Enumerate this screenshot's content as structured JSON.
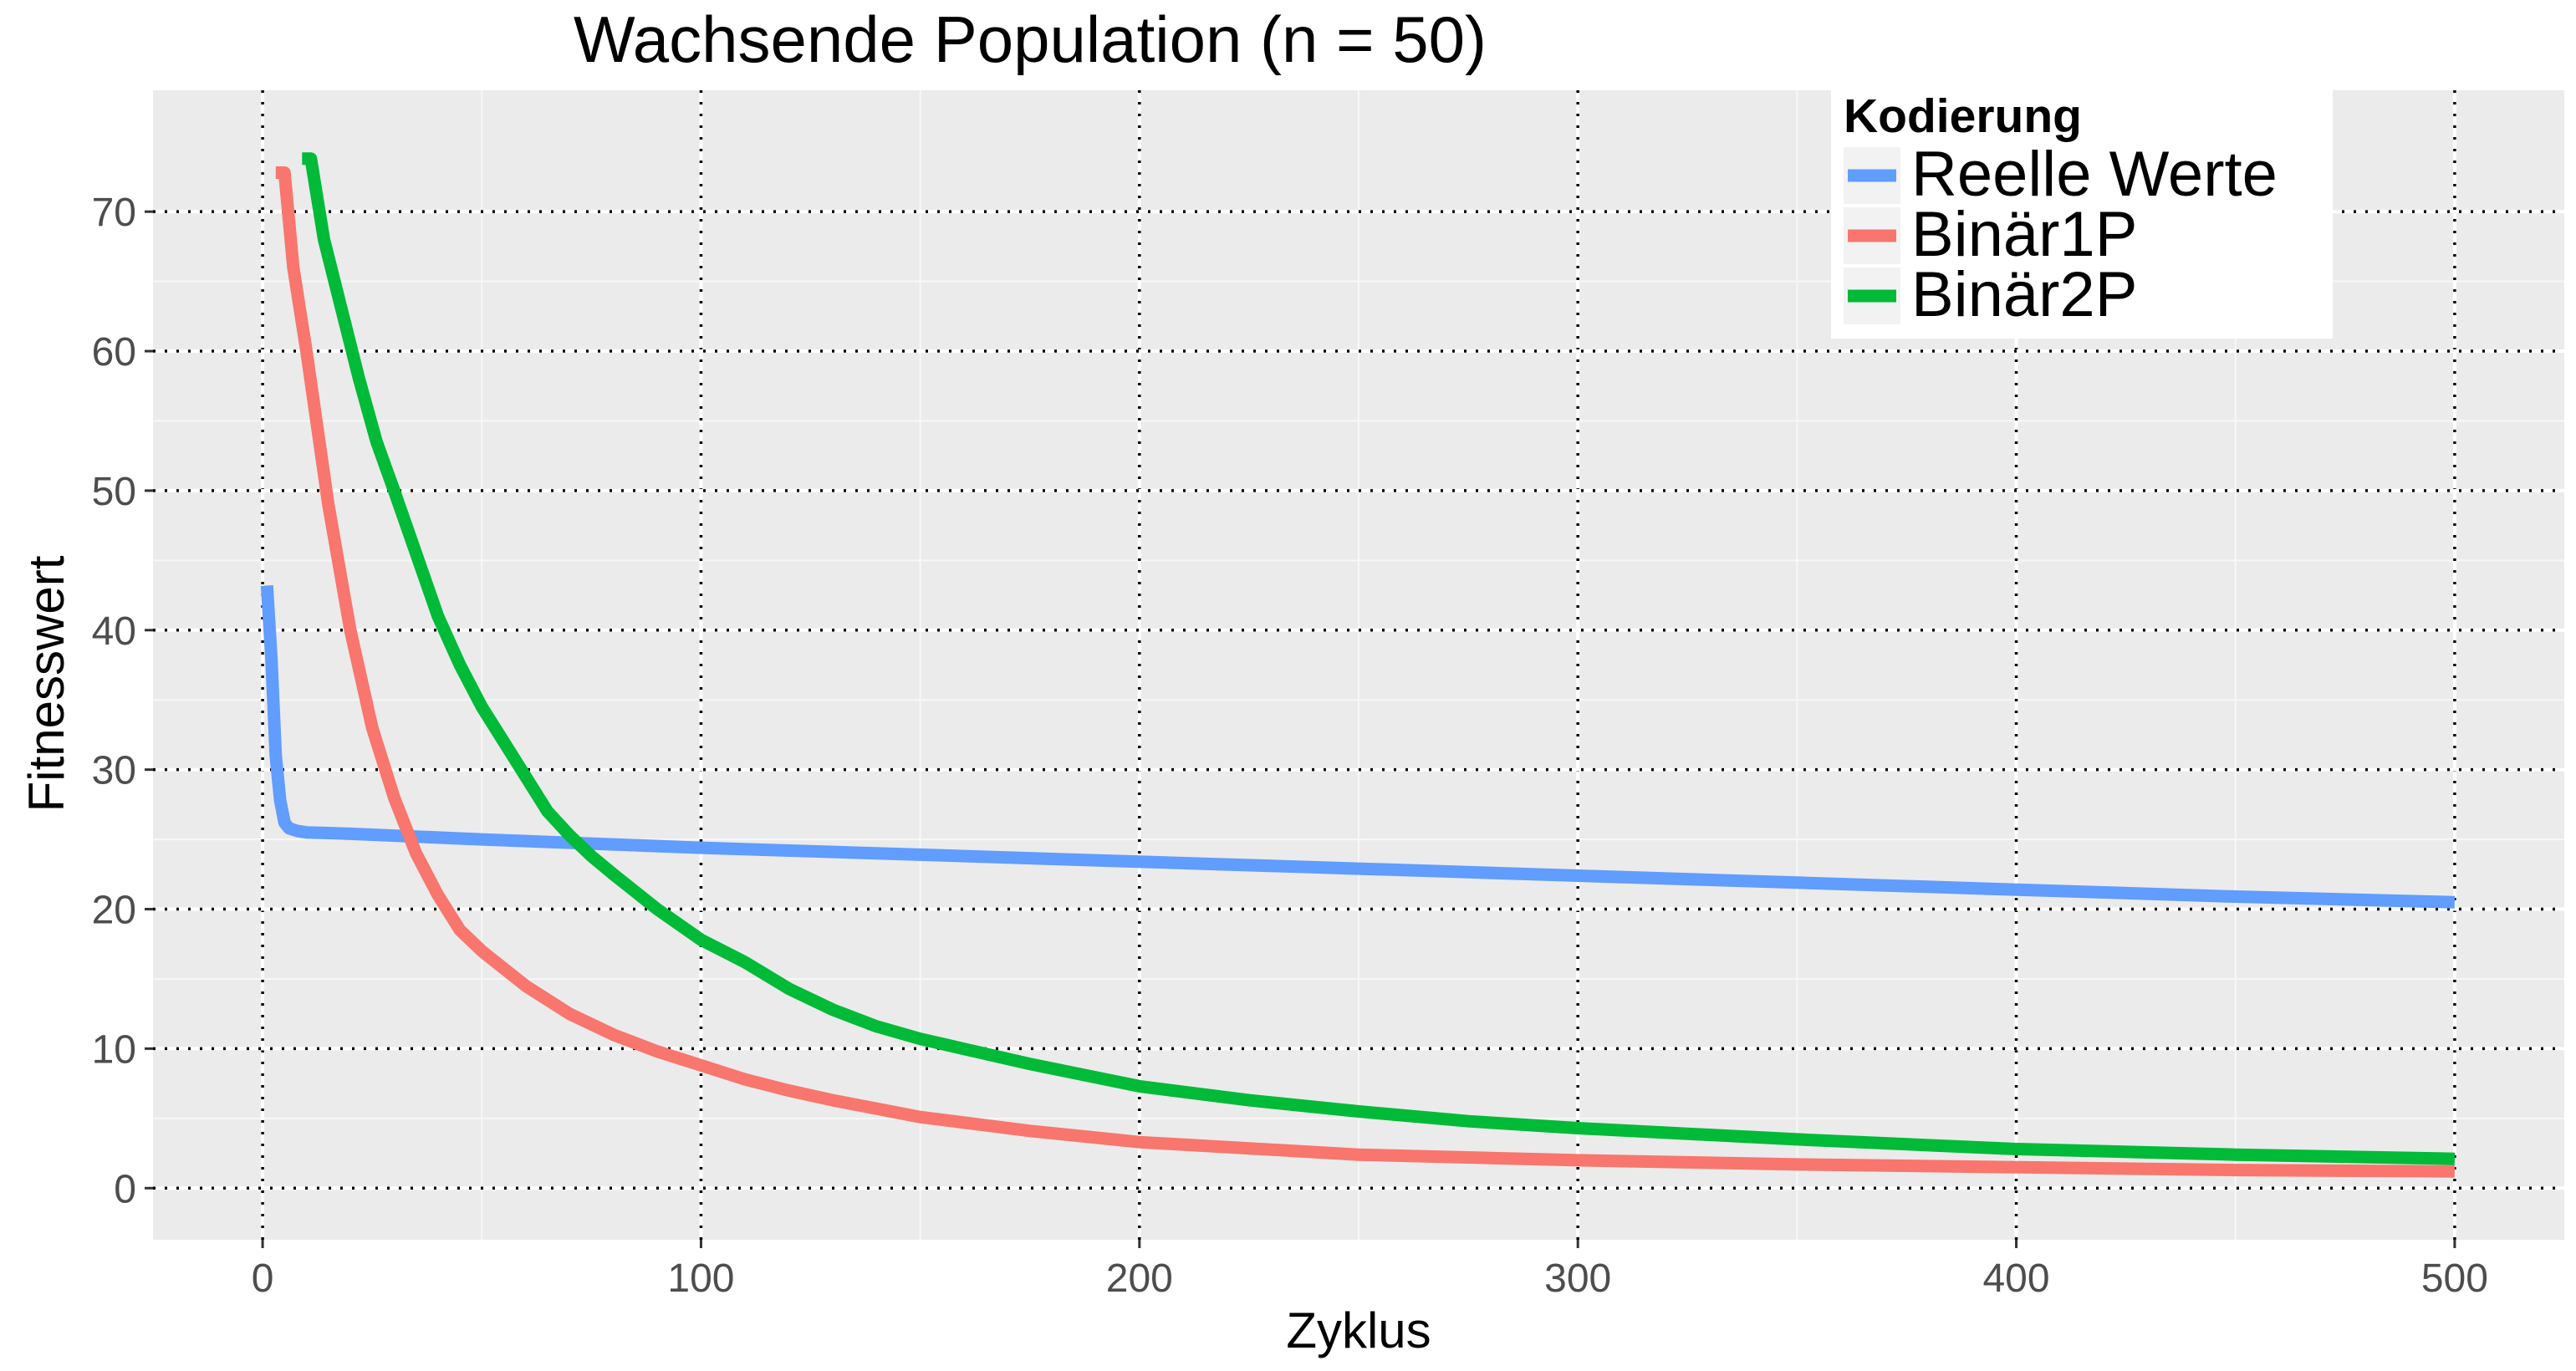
{
  "chart_data": {
    "type": "line",
    "title": "Wachsende Population (n = 50)",
    "xlabel": "Zyklus",
    "ylabel": "Fitnesswert",
    "xlim": [
      -25,
      525
    ],
    "ylim": [
      -3.7,
      78.7
    ],
    "x_ticks": [
      0,
      100,
      200,
      300,
      400,
      500
    ],
    "x_tick_labels": [
      "0",
      "100",
      "200",
      "300",
      "400",
      "500"
    ],
    "y_ticks": [
      0,
      10,
      20,
      30,
      40,
      50,
      60,
      70
    ],
    "y_tick_labels": [
      "0",
      "10",
      "20",
      "30",
      "40",
      "50",
      "60",
      "70"
    ],
    "grid": "on",
    "legend": {
      "title": "Kodierung",
      "position": "top-right",
      "entries": [
        "Reelle Werte",
        "Binär1P",
        "Binär2P"
      ]
    },
    "series": [
      {
        "name": "Reelle Werte",
        "color": "#619CFF",
        "x": [
          1,
          2,
          3,
          4,
          5,
          6,
          8,
          10,
          20,
          50,
          100,
          150,
          200,
          250,
          300,
          350,
          400,
          450,
          500
        ],
        "y": [
          43.2,
          38.0,
          31.0,
          27.8,
          26.2,
          25.8,
          25.6,
          25.5,
          25.4,
          25.0,
          24.4,
          23.9,
          23.4,
          22.9,
          22.4,
          21.9,
          21.4,
          20.9,
          20.5
        ]
      },
      {
        "name": "Binär1P",
        "color": "#F8766D",
        "x": [
          3,
          5,
          7,
          10,
          15,
          20,
          25,
          30,
          35,
          40,
          45,
          50,
          60,
          70,
          80,
          90,
          100,
          110,
          120,
          130,
          140,
          150,
          175,
          200,
          250,
          300,
          350,
          400,
          450,
          500
        ],
        "y": [
          72.8,
          72.8,
          66,
          60,
          49,
          40,
          33,
          28,
          24,
          21,
          18.5,
          17,
          14.5,
          12.5,
          11,
          9.8,
          8.8,
          7.8,
          7,
          6.3,
          5.7,
          5.1,
          4.1,
          3.3,
          2.4,
          2.0,
          1.7,
          1.5,
          1.3,
          1.2
        ]
      },
      {
        "name": "Binär2P",
        "color": "#00BA38",
        "x": [
          9,
          11,
          14,
          18,
          22,
          26,
          30,
          35,
          40,
          45,
          50,
          55,
          60,
          65,
          70,
          75,
          80,
          90,
          100,
          110,
          120,
          130,
          140,
          150,
          175,
          200,
          225,
          250,
          275,
          300,
          350,
          400,
          450,
          500
        ],
        "y": [
          73.8,
          73.8,
          68,
          63,
          58,
          53.5,
          50,
          45.5,
          41,
          37.5,
          34.5,
          32,
          29.5,
          27,
          25.3,
          23.8,
          22.5,
          20,
          17.8,
          16.2,
          14.3,
          12.8,
          11.6,
          10.7,
          8.9,
          7.3,
          6.3,
          5.5,
          4.8,
          4.3,
          3.5,
          2.8,
          2.4,
          2.1
        ]
      }
    ]
  }
}
